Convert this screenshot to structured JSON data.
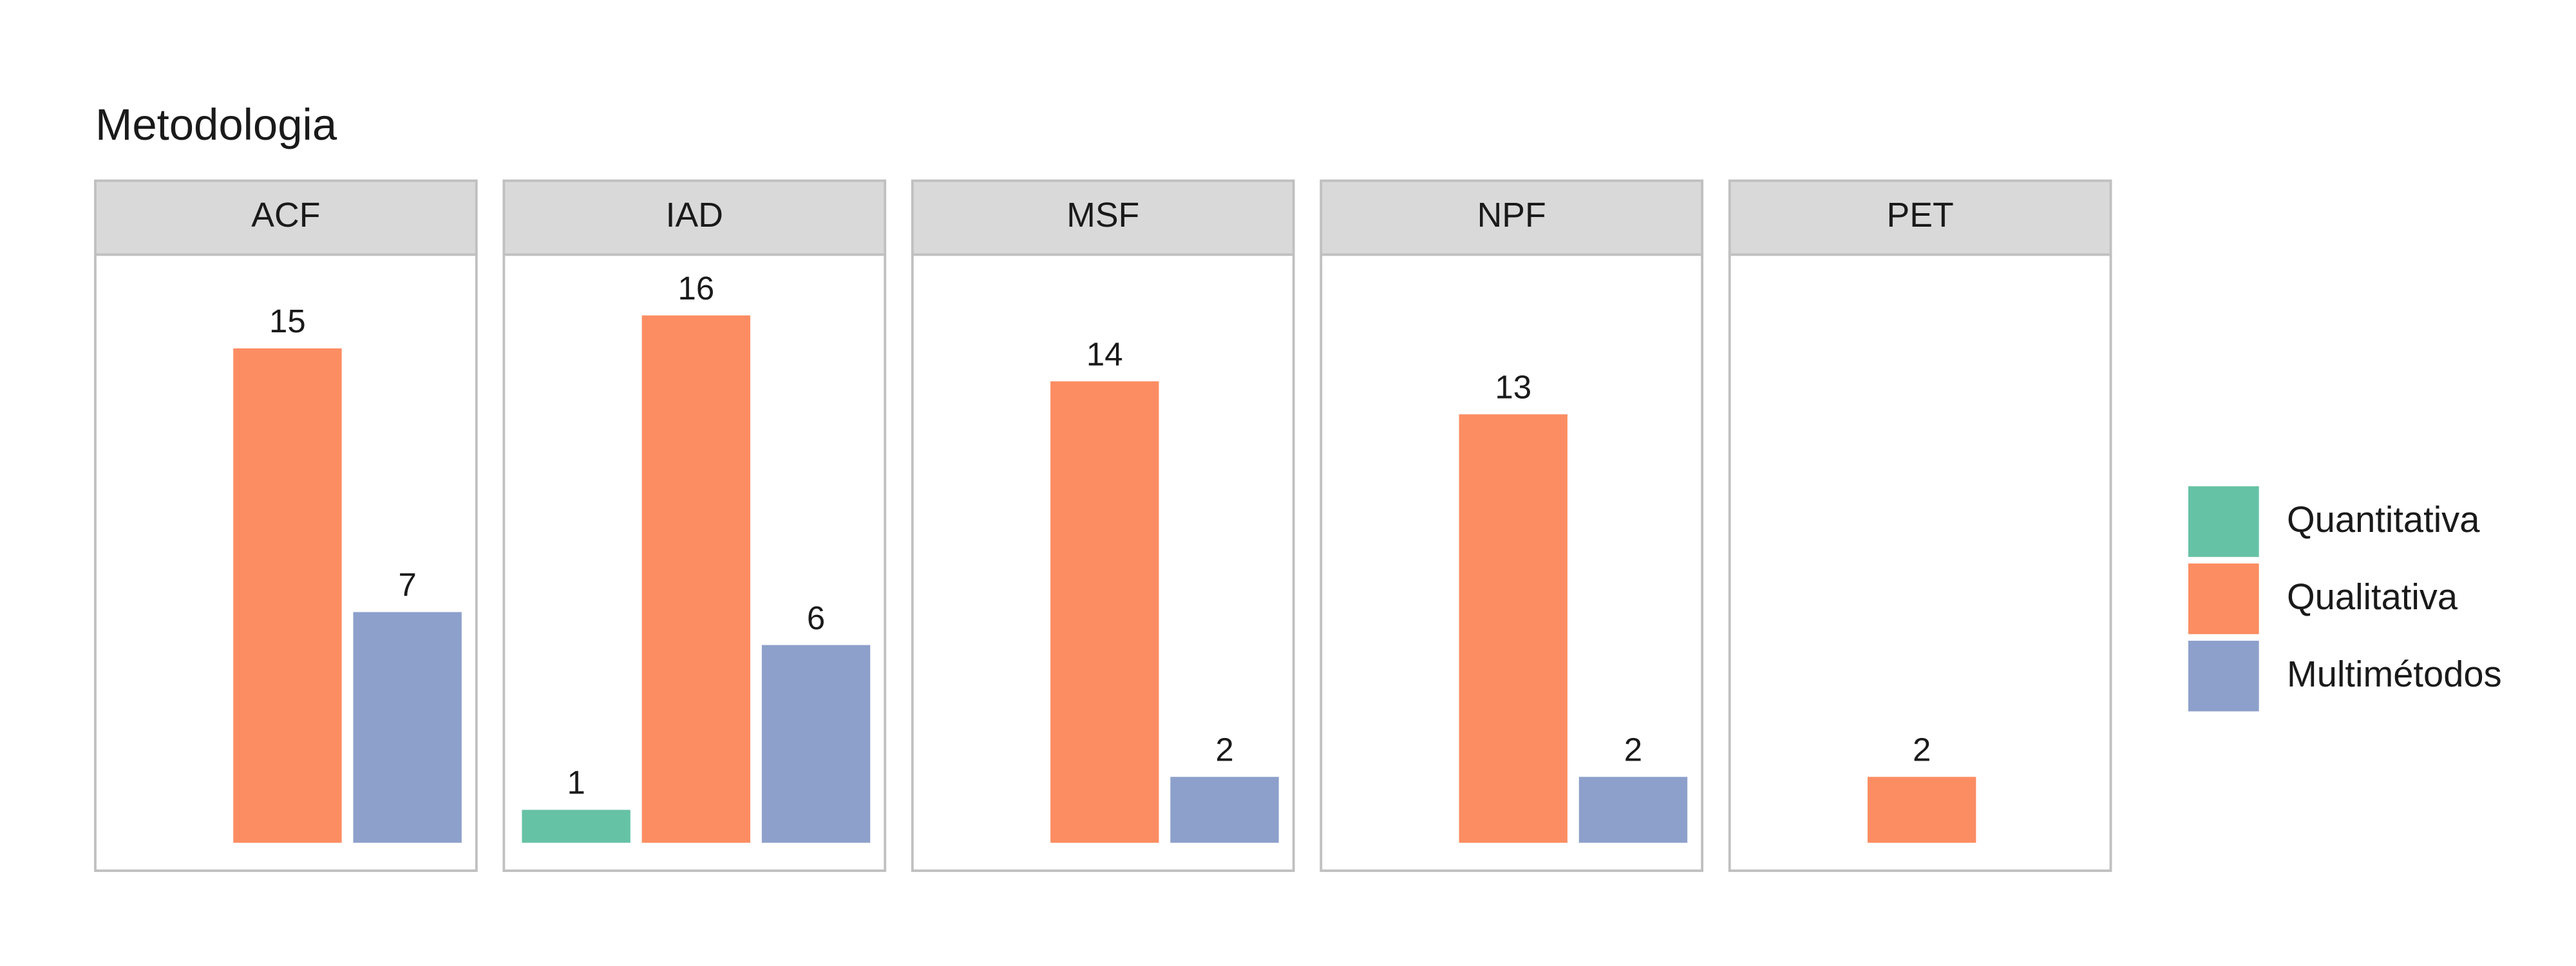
{
  "chart_data": {
    "type": "bar",
    "title": "Metodologia",
    "facets": [
      "ACF",
      "IAD",
      "MSF",
      "NPF",
      "PET"
    ],
    "series": [
      {
        "name": "Quantitativa",
        "color": "#66c2a5",
        "values": [
          null,
          1,
          null,
          null,
          null
        ]
      },
      {
        "name": "Qualitativa",
        "color": "#fc8d62",
        "values": [
          15,
          16,
          14,
          13,
          2
        ]
      },
      {
        "name": "Multimétodos",
        "color": "#8da0cb",
        "values": [
          7,
          6,
          2,
          2,
          null
        ]
      }
    ]
  }
}
